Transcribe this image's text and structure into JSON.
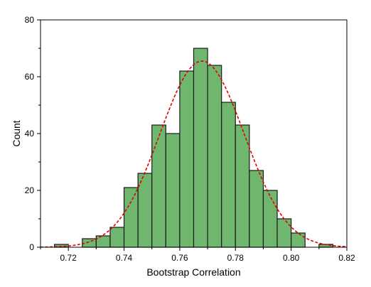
{
  "chart_data": {
    "type": "bar",
    "subtype": "histogram",
    "title": "",
    "xlabel": "Bootstrap Correlation",
    "ylabel": "Count",
    "xlim": [
      0.71,
      0.82
    ],
    "ylim": [
      0,
      80
    ],
    "x_ticks": [
      "0.72",
      "0.74",
      "0.76",
      "0.78",
      "0.80",
      "0.82"
    ],
    "x_tick_values": [
      0.72,
      0.74,
      0.76,
      0.78,
      0.8,
      0.82
    ],
    "y_ticks": [
      "0",
      "20",
      "40",
      "60",
      "80"
    ],
    "y_tick_values": [
      0,
      20,
      40,
      60,
      80
    ],
    "bin_width": 0.005,
    "bins": [
      {
        "start": 0.715,
        "end": 0.72,
        "count": 1
      },
      {
        "start": 0.72,
        "end": 0.725,
        "count": 0
      },
      {
        "start": 0.725,
        "end": 0.73,
        "count": 3
      },
      {
        "start": 0.73,
        "end": 0.735,
        "count": 4
      },
      {
        "start": 0.735,
        "end": 0.74,
        "count": 7
      },
      {
        "start": 0.74,
        "end": 0.745,
        "count": 21
      },
      {
        "start": 0.745,
        "end": 0.75,
        "count": 26
      },
      {
        "start": 0.75,
        "end": 0.755,
        "count": 43
      },
      {
        "start": 0.755,
        "end": 0.76,
        "count": 40
      },
      {
        "start": 0.76,
        "end": 0.765,
        "count": 62
      },
      {
        "start": 0.765,
        "end": 0.77,
        "count": 70
      },
      {
        "start": 0.77,
        "end": 0.775,
        "count": 64
      },
      {
        "start": 0.775,
        "end": 0.78,
        "count": 51
      },
      {
        "start": 0.78,
        "end": 0.785,
        "count": 43
      },
      {
        "start": 0.785,
        "end": 0.79,
        "count": 27
      },
      {
        "start": 0.79,
        "end": 0.795,
        "count": 20
      },
      {
        "start": 0.795,
        "end": 0.8,
        "count": 10
      },
      {
        "start": 0.8,
        "end": 0.805,
        "count": 5
      },
      {
        "start": 0.805,
        "end": 0.81,
        "count": 0
      },
      {
        "start": 0.81,
        "end": 0.815,
        "count": 1
      }
    ],
    "fit_curve": {
      "type": "normal",
      "mean": 0.768,
      "sd": 0.0152,
      "peak": 65.5,
      "style": "dashed"
    },
    "colors": {
      "bar_fill": "#6fb76f",
      "bar_stroke": "#1a1a1a",
      "curve": "#e00000"
    },
    "grid": false,
    "legend": "none"
  }
}
